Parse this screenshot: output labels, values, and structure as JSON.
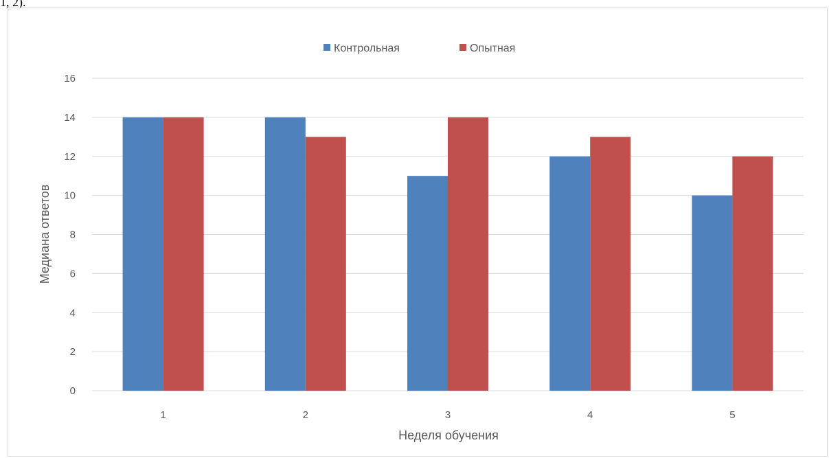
{
  "page": {
    "top_fragment": "1, 2)."
  },
  "colors": {
    "series_1": "#4f81bd",
    "series_2": "#c0504d",
    "gridline": "#d9d9d9",
    "text": "#595959"
  },
  "chart_data": {
    "type": "bar",
    "title": "",
    "xlabel": "Неделя обучения",
    "ylabel": "Медиана ответов",
    "categories": [
      "1",
      "2",
      "3",
      "4",
      "5"
    ],
    "series": [
      {
        "name": "Контрольная",
        "values": [
          14,
          14,
          11,
          12,
          10
        ]
      },
      {
        "name": "Опытная",
        "values": [
          14,
          13,
          14,
          13,
          12
        ]
      }
    ],
    "ylim": [
      0,
      16
    ],
    "yticks": [
      "0",
      "2",
      "4",
      "6",
      "8",
      "10",
      "12",
      "14",
      "16"
    ],
    "grid": true,
    "legend_position": "top-center"
  }
}
